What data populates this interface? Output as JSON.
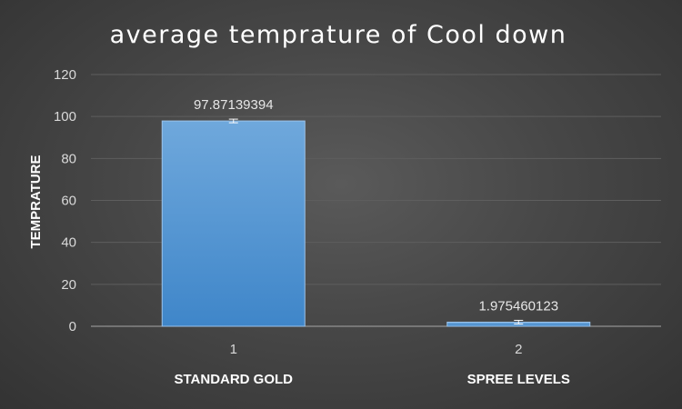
{
  "chart_data": {
    "type": "bar",
    "title": "average temprature of Cool down",
    "ylabel": "TEMPRATURE",
    "xlabel": "",
    "ylim": [
      0,
      120
    ],
    "yticks": [
      0,
      20,
      40,
      60,
      80,
      100,
      120
    ],
    "categories": [
      "1",
      "2"
    ],
    "category_names": [
      "STANDARD GOLD",
      "SPREE LEVELS"
    ],
    "values": [
      97.87139394,
      1.975460123
    ],
    "data_labels": [
      "97.87139394",
      "1.975460123"
    ],
    "error_bars": true,
    "grid": true,
    "legend": "none",
    "colors": {
      "bar": "#5b9bd5",
      "background": "#404040"
    }
  }
}
